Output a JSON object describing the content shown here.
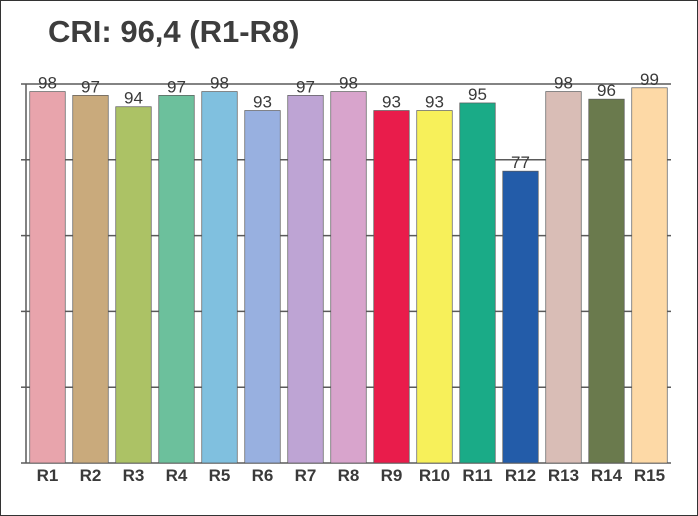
{
  "chart_data": {
    "type": "bar",
    "title": "CRI: 96,4 (R1-R8)",
    "xlabel": "",
    "ylabel": "",
    "ylim": [
      0,
      100
    ],
    "grid": true,
    "legend": "none",
    "categories": [
      "R1",
      "R2",
      "R3",
      "R4",
      "R5",
      "R6",
      "R7",
      "R8",
      "R9",
      "R10",
      "R11",
      "R12",
      "R13",
      "R14",
      "R15"
    ],
    "values": [
      98,
      97,
      94,
      97,
      98,
      93,
      97,
      98,
      93,
      93,
      95,
      77,
      98,
      96,
      99
    ],
    "colors": [
      "#e8a4ac",
      "#c9aa7c",
      "#acc265",
      "#6cc09c",
      "#80c0df",
      "#98b0e0",
      "#bea4d4",
      "#d8a4cc",
      "#e91c4b",
      "#f7f05a",
      "#1aab87",
      "#235ca9",
      "#d9bdb6",
      "#6a7a4d",
      "#fdd9a6"
    ]
  }
}
